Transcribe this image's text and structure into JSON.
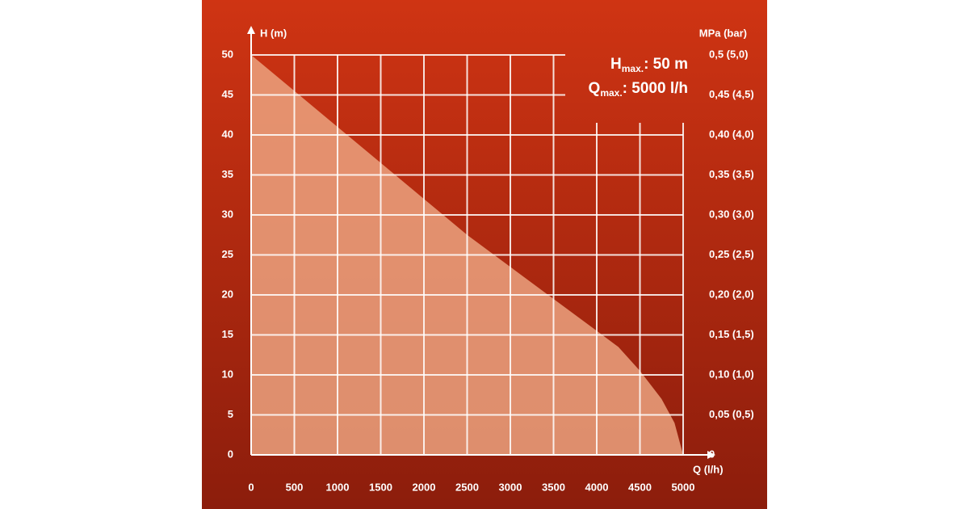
{
  "chart_data": {
    "type": "area",
    "x_label": "Q (l/h)",
    "y_label": "H (m)",
    "y2_label": "MPa (bar)",
    "annotations": [
      {
        "symbol": "H",
        "subscript": "max.",
        "text": ": 50 m"
      },
      {
        "symbol": "Q",
        "subscript": "max.",
        "text": ": 5000 l/h"
      }
    ],
    "x": [
      0,
      500,
      1000,
      1500,
      2000,
      2500,
      3000,
      3500,
      4000,
      4250,
      4500,
      4750,
      4900,
      5000
    ],
    "series": [
      {
        "color": "#eba27f",
        "values": [
          50,
          45.5,
          41,
          36.5,
          32,
          27.5,
          23.5,
          19.5,
          15.5,
          13.5,
          10.5,
          7,
          4,
          0
        ]
      }
    ],
    "xlim": [
      0,
      5000
    ],
    "xticks": [
      0,
      500,
      1000,
      1500,
      2000,
      2500,
      3000,
      3500,
      4000,
      4500,
      5000
    ],
    "ylim": [
      0,
      50
    ],
    "yticks": [
      0,
      5,
      10,
      15,
      20,
      25,
      30,
      35,
      40,
      45,
      50
    ],
    "y2lim": [
      0,
      0.5
    ],
    "y2ticks": [
      0,
      {
        "value": 0.05,
        "label": "0,05 (0,5)"
      },
      {
        "value": 0.1,
        "label": "0,10 (1,0)"
      },
      {
        "value": 0.15,
        "label": "0,15 (1,5)"
      },
      {
        "value": 0.2,
        "label": "0,20 (2,0)"
      },
      {
        "value": 0.25,
        "label": "0,25 (2,5)"
      },
      {
        "value": 0.3,
        "label": "0,30 (3,0)"
      },
      {
        "value": 0.35,
        "label": "0,35 (3,5)"
      },
      {
        "value": 0.4,
        "label": "0,40 (4,0)"
      },
      {
        "value": 0.45,
        "label": "0,45 (4,5)"
      },
      {
        "value": 0.5,
        "label": "0,5 (5,0)"
      }
    ],
    "grid": true
  }
}
